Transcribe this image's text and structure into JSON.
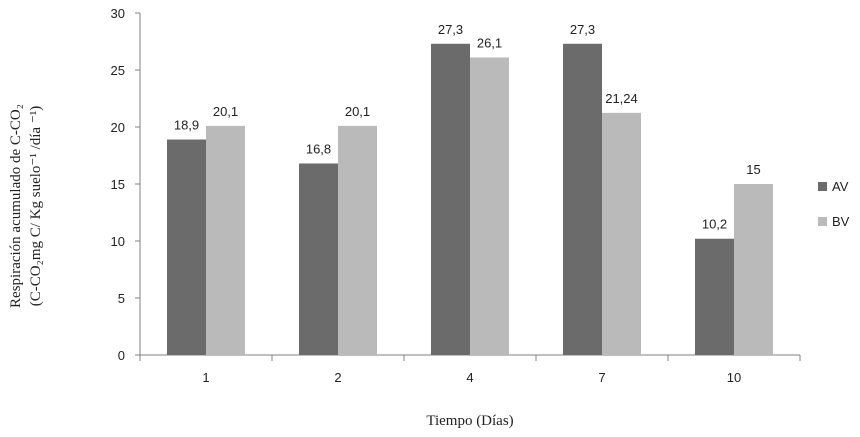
{
  "chart_data": {
    "type": "bar",
    "categories": [
      "1",
      "2",
      "4",
      "7",
      "10"
    ],
    "series": [
      {
        "name": "AV",
        "values": [
          18.9,
          16.8,
          27.3,
          27.3,
          10.2
        ],
        "labels": [
          "18,9",
          "16,8",
          "27,3",
          "27,3",
          "10,2"
        ],
        "color": "#6b6b6b"
      },
      {
        "name": "BV",
        "values": [
          20.1,
          20.1,
          26.1,
          21.24,
          15
        ],
        "labels": [
          "20,1",
          "20,1",
          "26,1",
          "21,24",
          "15"
        ],
        "color": "#bababa"
      }
    ],
    "title": "",
    "xlabel": "Tiempo (Días)",
    "ylabel_line1": "Respiración acumulado de C-CO₂",
    "ylabel_line2": "(C-CO₂mg C/ Kg suelo⁻¹ /día ⁻¹)",
    "ylim": [
      0,
      30
    ],
    "yticks": [
      0,
      5,
      10,
      15,
      20,
      25,
      30
    ],
    "grid": false,
    "legend": "right"
  }
}
